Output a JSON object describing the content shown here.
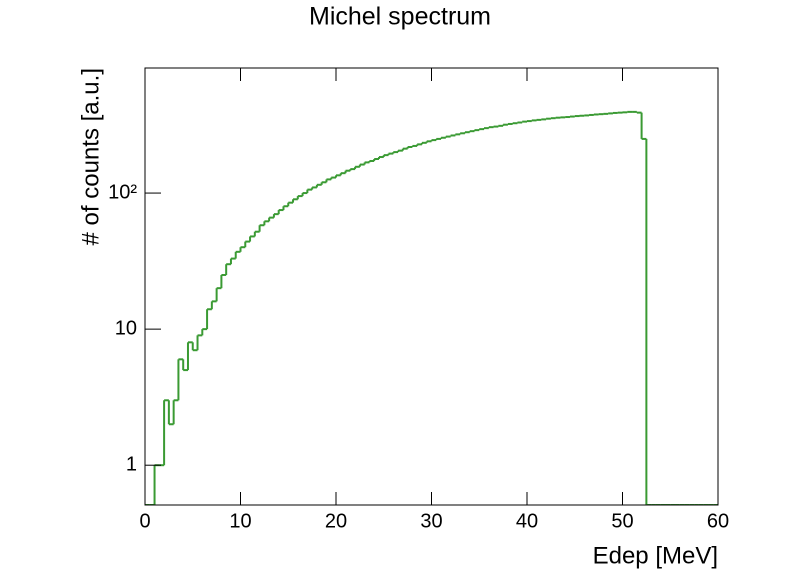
{
  "chart_data": {
    "type": "histogram",
    "title": "Michel spectrum",
    "x_label": "Edep [MeV]",
    "y_label": "# of counts [a.u.]",
    "color": "#3a9a33",
    "log_y": true,
    "xlim": [
      0,
      60
    ],
    "xticks": [
      0,
      10,
      20,
      30,
      40,
      50,
      60
    ],
    "ylim": [
      0.51,
      830
    ],
    "yticks": [
      1,
      10,
      {
        "value": 100,
        "label": "10²"
      }
    ],
    "bins": [
      0,
      0.5,
      1,
      1.5,
      2,
      2.5,
      3,
      3.5,
      4,
      4.5,
      5,
      5.5,
      6,
      6.5,
      7,
      7.5,
      8,
      8.5,
      9,
      9.5,
      10,
      10.5,
      11,
      11.5,
      12,
      12.5,
      13,
      13.5,
      14,
      14.5,
      15,
      15.5,
      16,
      16.5,
      17,
      17.5,
      18,
      18.5,
      19,
      19.5,
      20,
      20.5,
      21,
      21.5,
      22,
      22.5,
      23,
      23.5,
      24,
      24.5,
      25,
      25.5,
      26,
      26.5,
      27,
      27.5,
      28,
      28.5,
      29,
      29.5,
      30,
      30.5,
      31,
      31.5,
      32,
      32.5,
      33,
      33.5,
      34,
      34.5,
      35,
      35.5,
      36,
      36.5,
      37,
      37.5,
      38,
      38.5,
      39,
      39.5,
      40,
      40.5,
      41,
      41.5,
      42,
      42.5,
      43,
      43.5,
      44,
      44.5,
      45,
      45.5,
      46,
      46.5,
      47,
      47.5,
      48,
      48.5,
      49,
      49.5,
      50,
      50.5,
      51,
      51.5,
      52,
      52.5,
      53,
      53.5,
      54,
      54.5,
      55,
      55.5,
      56,
      56.5,
      57,
      57.5,
      58,
      58.5,
      59,
      59.5,
      60
    ],
    "values": [
      0,
      0,
      1,
      1,
      3,
      2,
      3,
      6,
      5,
      8,
      7,
      9,
      10,
      14,
      16,
      20,
      25,
      30,
      33,
      37,
      40,
      44,
      48,
      52,
      58,
      62,
      66,
      70,
      75,
      80,
      85,
      90,
      95,
      100,
      106,
      110,
      115,
      120,
      126,
      130,
      135,
      140,
      146,
      150,
      156,
      162,
      168,
      172,
      178,
      184,
      190,
      195,
      200,
      205,
      212,
      218,
      222,
      228,
      234,
      240,
      245,
      250,
      255,
      260,
      265,
      270,
      275,
      280,
      285,
      290,
      295,
      300,
      305,
      308,
      312,
      318,
      322,
      326,
      330,
      335,
      338,
      342,
      345,
      348,
      352,
      355,
      358,
      360,
      362,
      365,
      368,
      370,
      372,
      375,
      378,
      380,
      382,
      385,
      388,
      390,
      392,
      395,
      395,
      390,
      250,
      0,
      0,
      0,
      0,
      0,
      0,
      0,
      0,
      0,
      0,
      0,
      0,
      0,
      0,
      0
    ]
  }
}
